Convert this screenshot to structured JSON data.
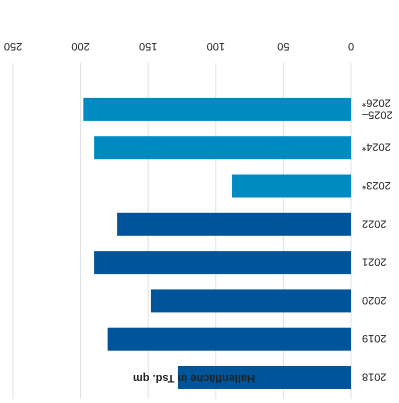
{
  "chart_data": {
    "type": "bar",
    "orientation": "horizontal",
    "categories": [
      "2018",
      "2019",
      "2020",
      "2021",
      "2022",
      "2023*",
      "2024*",
      "2025–\n2026*"
    ],
    "values": [
      128,
      180,
      148,
      190,
      173,
      88,
      190,
      198
    ],
    "colors": [
      "#00559a",
      "#00559a",
      "#00559a",
      "#00559a",
      "#00559a",
      "#008ac2",
      "#008ac2",
      "#008ac2"
    ],
    "xlabel": "Hallenfläche in Tsd. qm",
    "ylabel": "",
    "xlim": [
      0,
      250
    ],
    "xticks": [
      0,
      50,
      100,
      150,
      200,
      250
    ],
    "grid": true,
    "legend": "none",
    "rotation": "180deg"
  }
}
